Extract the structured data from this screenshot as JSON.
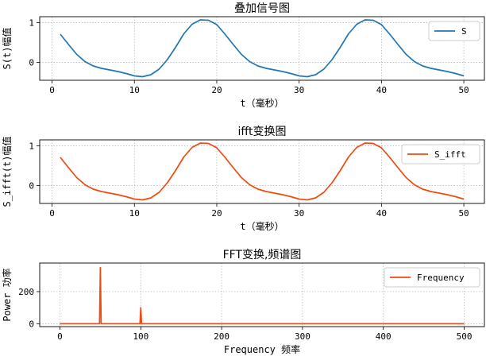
{
  "chart_data": [
    {
      "type": "line",
      "title": "叠加信号图",
      "xlabel": "t（毫秒）",
      "ylabel": "S(t)幅值",
      "xlim": [
        -1.5,
        52.5
      ],
      "ylim": [
        -0.45,
        1.15
      ],
      "xticks": [
        0,
        10,
        20,
        30,
        40,
        50
      ],
      "yticks": [
        0,
        1
      ],
      "grid": true,
      "legend_position": "top-right",
      "series": [
        {
          "name": "S",
          "color": "#1f77b4",
          "x": [
            1,
            2,
            3,
            4,
            5,
            6,
            7,
            8,
            9,
            10,
            11,
            12,
            13,
            14,
            15,
            16,
            17,
            18,
            19,
            20,
            21,
            22,
            23,
            24,
            25,
            26,
            27,
            28,
            29,
            30,
            31,
            32,
            33,
            34,
            35,
            36,
            37,
            38,
            39,
            40,
            41,
            42,
            43,
            44,
            45,
            46,
            47,
            48,
            49,
            50
          ],
          "y": [
            0.71,
            0.45,
            0.2,
            0.02,
            -0.09,
            -0.15,
            -0.19,
            -0.23,
            -0.28,
            -0.34,
            -0.36,
            -0.31,
            -0.17,
            0.07,
            0.38,
            0.72,
            0.96,
            1.07,
            1.06,
            0.95,
            0.71,
            0.45,
            0.2,
            0.02,
            -0.09,
            -0.15,
            -0.19,
            -0.23,
            -0.28,
            -0.34,
            -0.36,
            -0.31,
            -0.17,
            0.07,
            0.38,
            0.72,
            0.96,
            1.07,
            1.06,
            0.95,
            0.71,
            0.45,
            0.2,
            0.02,
            -0.09,
            -0.15,
            -0.19,
            -0.23,
            -0.28,
            -0.34
          ]
        }
      ]
    },
    {
      "type": "line",
      "title": "ifft变换图",
      "xlabel": "t（毫秒）",
      "ylabel": "S_ifft(t)幅值",
      "xlim": [
        -1.5,
        52.5
      ],
      "ylim": [
        -0.45,
        1.15
      ],
      "xticks": [
        0,
        10,
        20,
        30,
        40,
        50
      ],
      "yticks": [
        0,
        1
      ],
      "grid": true,
      "legend_position": "top-right",
      "series": [
        {
          "name": "S_ifft",
          "color": "#f04a0c",
          "x": [
            1,
            2,
            3,
            4,
            5,
            6,
            7,
            8,
            9,
            10,
            11,
            12,
            13,
            14,
            15,
            16,
            17,
            18,
            19,
            20,
            21,
            22,
            23,
            24,
            25,
            26,
            27,
            28,
            29,
            30,
            31,
            32,
            33,
            34,
            35,
            36,
            37,
            38,
            39,
            40,
            41,
            42,
            43,
            44,
            45,
            46,
            47,
            48,
            49,
            50
          ],
          "y": [
            0.71,
            0.45,
            0.2,
            0.02,
            -0.09,
            -0.15,
            -0.19,
            -0.23,
            -0.28,
            -0.34,
            -0.36,
            -0.31,
            -0.17,
            0.07,
            0.38,
            0.72,
            0.96,
            1.07,
            1.06,
            0.95,
            0.71,
            0.45,
            0.2,
            0.02,
            -0.09,
            -0.15,
            -0.19,
            -0.23,
            -0.28,
            -0.34,
            -0.36,
            -0.31,
            -0.17,
            0.07,
            0.38,
            0.72,
            0.96,
            1.07,
            1.06,
            0.95,
            0.71,
            0.45,
            0.2,
            0.02,
            -0.09,
            -0.15,
            -0.19,
            -0.23,
            -0.28,
            -0.34
          ]
        }
      ]
    },
    {
      "type": "line",
      "title": "FFT变换,频谱图",
      "xlabel": "Frequency 频率",
      "ylabel": "Power 功率",
      "xlim": [
        -25,
        525
      ],
      "ylim": [
        -18,
        378
      ],
      "xticks": [
        0,
        100,
        200,
        300,
        400,
        500
      ],
      "yticks": [
        0,
        200
      ],
      "grid": true,
      "legend_position": "top-right",
      "series": [
        {
          "name": "Frequency",
          "color": "#f04a0c",
          "x": [
            0,
            48,
            49,
            50,
            51,
            52,
            98,
            99,
            100,
            101,
            102,
            500
          ],
          "y": [
            0,
            0,
            0,
            350,
            0,
            0,
            0,
            0,
            100,
            0,
            0,
            0
          ]
        }
      ]
    }
  ]
}
